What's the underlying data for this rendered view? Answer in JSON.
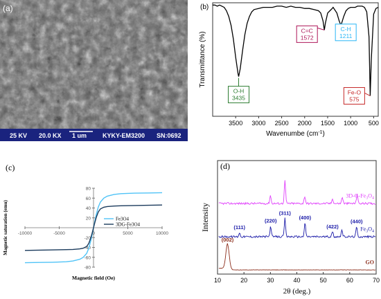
{
  "panel_a": {
    "label": "(a)",
    "sem_bar": {
      "kv": "25 KV",
      "mag": "20.0 KX",
      "scale": "1 um",
      "instrument": "KYKY-EM3200",
      "sn": "SN:0692"
    },
    "colors": {
      "bar": "#1a237e",
      "text": "#ffffff"
    }
  },
  "chart_data": [
    {
      "id": "b",
      "type": "line",
      "panel_label": "(b)",
      "title": "",
      "xlabel": "Wavenumbe (cm",
      "xlabel_sup": "-1",
      "xlabel_close": ")",
      "ylabel": "Transmittance (%)",
      "xlim": [
        4000,
        400
      ],
      "xticks": [
        3500,
        3000,
        2500,
        2000,
        1500,
        1000,
        500
      ],
      "x_reversed": true,
      "line_color": "#000000",
      "series": [
        {
          "x": [
            4000,
            3950,
            3900,
            3850,
            3800,
            3750,
            3700,
            3650,
            3600,
            3550,
            3500,
            3450,
            3435,
            3400,
            3350,
            3300,
            3250,
            3200,
            3150,
            3100,
            3000,
            2900,
            2800,
            2700,
            2600,
            2500,
            2400,
            2300,
            2200,
            2100,
            2000,
            1900,
            1800,
            1700,
            1650,
            1600,
            1572,
            1550,
            1500,
            1450,
            1400,
            1380,
            1300,
            1250,
            1211,
            1150,
            1100,
            1050,
            1000,
            950,
            900,
            850,
            800,
            750,
            700,
            650,
            600,
            575,
            550,
            500,
            450,
            400
          ],
          "y": [
            98,
            98,
            97,
            98,
            97,
            96,
            93,
            88,
            80,
            68,
            52,
            38,
            35,
            42,
            58,
            72,
            82,
            88,
            92,
            94,
            95,
            96,
            96,
            96,
            97,
            97,
            96,
            97,
            96,
            96,
            95,
            95,
            94,
            93,
            91,
            84,
            76,
            82,
            91,
            93,
            95,
            96,
            91,
            84,
            80,
            88,
            93,
            95,
            96,
            96,
            96,
            97,
            97,
            97,
            96,
            92,
            70,
            18,
            50,
            90,
            95,
            96
          ]
        }
      ],
      "annotations": [
        {
          "name": "O-H",
          "value": "3435",
          "color": "#2e7d32"
        },
        {
          "name": "C=C",
          "value": "1572",
          "color": "#ad1457"
        },
        {
          "name": "C-H",
          "value": "1211",
          "color": "#29b6f6"
        },
        {
          "name": "Fe-O",
          "value": "575",
          "color": "#c62828"
        }
      ]
    },
    {
      "id": "c",
      "type": "line",
      "panel_label": "(c)",
      "title": "",
      "xlabel": "Magnetic field (Oe)",
      "ylabel": "Magnetic saturation (emu)",
      "xlim": [
        -10000,
        10000
      ],
      "ylim": [
        -80,
        80
      ],
      "xticks": [
        -10000,
        -5000,
        0,
        5000,
        10000
      ],
      "yticks": [
        -80,
        -60,
        -40,
        -20,
        20,
        40,
        60,
        80
      ],
      "legend_position": "upper-left",
      "series": [
        {
          "name": "Fe3O4",
          "color": "#4fc3f7",
          "x": [
            -10000,
            -8000,
            -6000,
            -4000,
            -3000,
            -2000,
            -1500,
            -1000,
            -700,
            -400,
            -200,
            0,
            200,
            400,
            700,
            1000,
            1500,
            2000,
            3000,
            4000,
            6000,
            8000,
            10000
          ],
          "y": [
            -71,
            -70.5,
            -70,
            -69,
            -67.5,
            -64,
            -60,
            -52,
            -42,
            -27,
            -14,
            0,
            14,
            27,
            42,
            52,
            60,
            64,
            67.5,
            69,
            70,
            70.5,
            71
          ]
        },
        {
          "name": "3DG-Fe3O4",
          "color": "#1a3a5c",
          "x": [
            -10000,
            -8000,
            -6000,
            -4000,
            -3000,
            -2000,
            -1500,
            -1000,
            -700,
            -400,
            -200,
            0,
            200,
            400,
            700,
            1000,
            1500,
            2000,
            3000,
            4000,
            6000,
            8000,
            10000
          ],
          "y": [
            -46,
            -45.5,
            -45,
            -44.5,
            -44,
            -43,
            -41.5,
            -38,
            -32,
            -21,
            -11,
            0,
            11,
            21,
            32,
            38,
            41.5,
            43,
            44,
            44.5,
            45,
            45.5,
            46
          ]
        }
      ]
    },
    {
      "id": "d",
      "type": "line",
      "panel_label": "(d)",
      "title": "",
      "xlabel": "2θ (deg.)",
      "ylabel": "Intensity",
      "xlim": [
        10,
        70
      ],
      "xticks": [
        10,
        20,
        30,
        40,
        50,
        60,
        70
      ],
      "series": [
        {
          "name": "3D-G-Fe3O4",
          "label_main": "3D-G-Fe",
          "label_sub1": "3",
          "label_mid": "O",
          "label_sub2": "4",
          "color": "#e040fb",
          "offset": 2.0,
          "peaks": [
            {
              "x": 30.0,
              "h": 0.25
            },
            {
              "x": 35.5,
              "h": 0.7
            },
            {
              "x": 43.0,
              "h": 0.22
            },
            {
              "x": 53.5,
              "h": 0.15
            },
            {
              "x": 57.2,
              "h": 0.2
            },
            {
              "x": 62.8,
              "h": 0.3
            }
          ]
        },
        {
          "name": "Fe3O4",
          "label_main": "Fe",
          "label_sub1": "3",
          "label_mid": "O",
          "label_sub2": "4",
          "color": "#1a1aa8",
          "offset": 1.0,
          "peaks": [
            {
              "x": 18.3,
              "h": 0.12
            },
            {
              "x": 30.1,
              "h": 0.32
            },
            {
              "x": 35.5,
              "h": 0.55
            },
            {
              "x": 43.1,
              "h": 0.42
            },
            {
              "x": 53.5,
              "h": 0.15
            },
            {
              "x": 57.0,
              "h": 0.22
            },
            {
              "x": 62.6,
              "h": 0.3
            }
          ]
        },
        {
          "name": "GO",
          "label_main": "GO",
          "color": "#8b2c1a",
          "offset": 0.0,
          "peaks": [
            {
              "x": 13.8,
              "h": 0.75
            }
          ]
        }
      ],
      "peak_labels": [
        {
          "text": "(111)",
          "x": 18.3,
          "series": "Fe3O4"
        },
        {
          "text": "(220)",
          "x": 30.1,
          "series": "Fe3O4"
        },
        {
          "text": "(311)",
          "x": 35.5,
          "series": "Fe3O4"
        },
        {
          "text": "(400)",
          "x": 43.1,
          "series": "Fe3O4"
        },
        {
          "text": "(422)",
          "x": 53.5,
          "series": "Fe3O4"
        },
        {
          "text": "(440)",
          "x": 62.6,
          "series": "Fe3O4"
        },
        {
          "text": "(002)",
          "x": 13.8,
          "series": "GO"
        }
      ]
    }
  ]
}
